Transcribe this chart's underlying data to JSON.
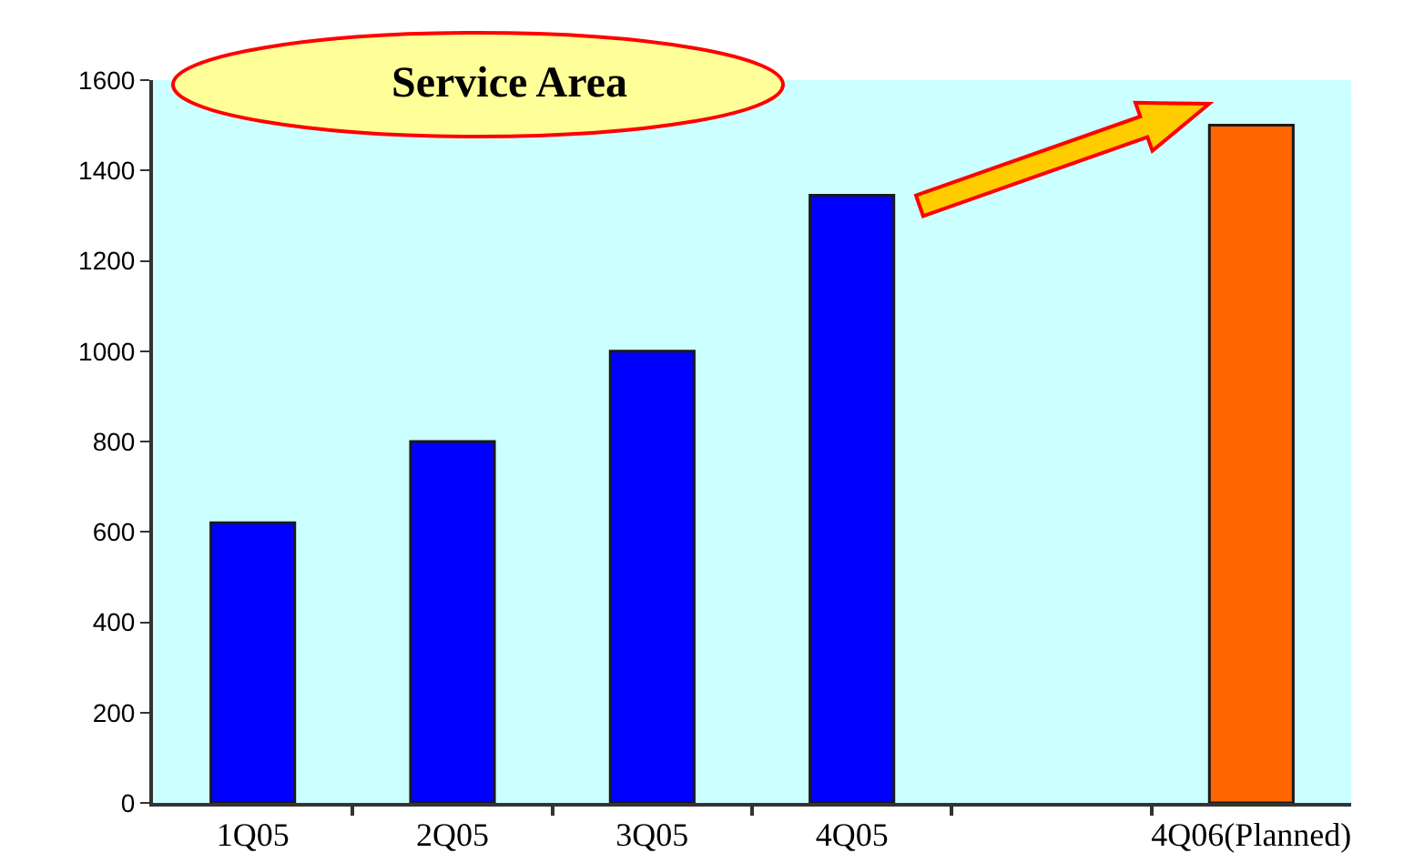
{
  "chart_data": {
    "type": "bar",
    "title": "Service Area",
    "categories": [
      "1Q05",
      "2Q05",
      "3Q05",
      "4Q05",
      null,
      "4Q06(Planned)"
    ],
    "values": [
      620,
      800,
      1000,
      1345,
      null,
      1500
    ],
    "colors": [
      "#0000ff",
      "#0000ff",
      "#0000ff",
      "#0000ff",
      "#0000ff",
      "#ff6600"
    ],
    "ylim": [
      0,
      1600
    ],
    "yticks": [
      0,
      200,
      400,
      600,
      800,
      1000,
      1200,
      1400,
      1600
    ],
    "grid": false,
    "legend": false
  }
}
